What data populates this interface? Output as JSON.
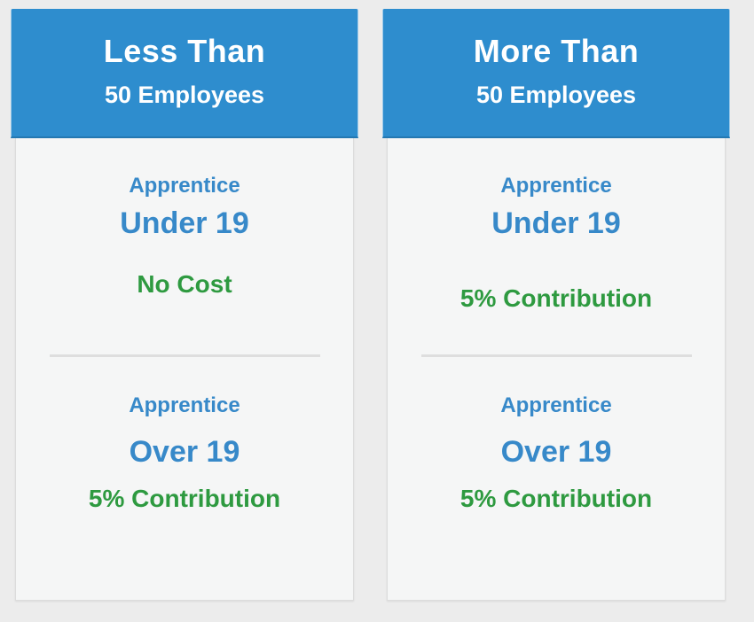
{
  "colors": {
    "page_background": "#ececec",
    "header_background": "#2e8dce",
    "header_border_bottom": "#2478b2",
    "body_background": "#f5f6f6",
    "body_border": "#dcdcdc",
    "divider": "#dedede",
    "label_blue": "#3789c9",
    "cost_green": "#2e9a40",
    "header_text": "#ffffff"
  },
  "cards": [
    {
      "title_line1": "Less Than",
      "title_line2": "50 Employees",
      "sections": [
        {
          "label": "Apprentice",
          "group": "Under 19",
          "cost": "No Cost"
        },
        {
          "label": "Apprentice",
          "group": "Over 19",
          "cost": "5% Contribution"
        }
      ]
    },
    {
      "title_line1": "More Than",
      "title_line2": "50 Employees",
      "sections": [
        {
          "label": "Apprentice",
          "group": "Under 19",
          "cost": "5% Contribution"
        },
        {
          "label": "Apprentice",
          "group": "Over 19",
          "cost": "5% Contribution"
        }
      ]
    }
  ]
}
